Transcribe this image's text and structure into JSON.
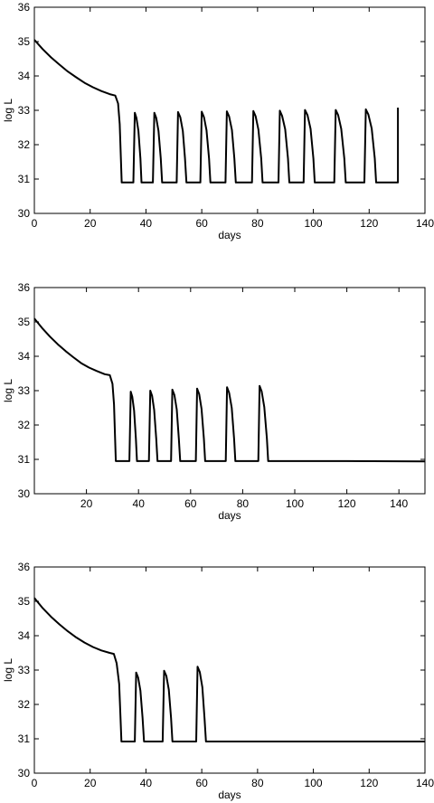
{
  "chart_data": [
    {
      "type": "line",
      "xlabel": "days",
      "ylabel": "log L",
      "xlim": [
        0,
        140
      ],
      "ylim": [
        30,
        36
      ],
      "xticks": [
        "0",
        "20",
        "40",
        "60",
        "80",
        "100",
        "120",
        "140"
      ],
      "yticks": [
        "30",
        "31",
        "32",
        "33",
        "34",
        "35",
        "36"
      ],
      "grid": false,
      "series": [
        {
          "name": "",
          "x": [
            0,
            3,
            6,
            9,
            12,
            15,
            18,
            21,
            24,
            27,
            29,
            30,
            30.6,
            31,
            31.3,
            35.5,
            36,
            36.6,
            37.3,
            38,
            38.4,
            42.5,
            43,
            43.7,
            44.5,
            45.3,
            45.8,
            51,
            51.5,
            52.3,
            53.2,
            54,
            54.5,
            59.5,
            60,
            60.8,
            61.7,
            62.6,
            63.1,
            68.5,
            69,
            69.8,
            70.8,
            71.7,
            72.2,
            78,
            78.5,
            79.3,
            80.3,
            81.3,
            81.8,
            87.5,
            88,
            88.8,
            89.9,
            90.9,
            91.4,
            96.5,
            97,
            97.9,
            99,
            100,
            100.5,
            107.5,
            108,
            108.9,
            110,
            111.1,
            111.6,
            118.3,
            118.8,
            119.7,
            120.9,
            122,
            122.5,
            130.3,
            130.3
          ],
          "values": [
            35.05,
            34.78,
            34.54,
            34.33,
            34.13,
            33.96,
            33.8,
            33.67,
            33.56,
            33.47,
            33.43,
            33.2,
            32.6,
            31.6,
            30.9,
            30.9,
            32.93,
            32.78,
            32.4,
            31.6,
            30.9,
            30.9,
            32.93,
            32.78,
            32.4,
            31.6,
            30.9,
            30.9,
            32.95,
            32.8,
            32.4,
            31.6,
            30.9,
            30.9,
            32.96,
            32.8,
            32.42,
            31.6,
            30.9,
            30.9,
            32.97,
            32.82,
            32.43,
            31.6,
            30.9,
            30.9,
            32.98,
            32.83,
            32.44,
            31.6,
            30.9,
            30.9,
            32.99,
            32.84,
            32.45,
            31.6,
            30.9,
            30.9,
            33.01,
            32.86,
            32.46,
            31.6,
            30.9,
            30.9,
            33.01,
            32.86,
            32.46,
            31.6,
            30.9,
            30.9,
            33.03,
            32.88,
            32.47,
            31.6,
            30.9,
            30.9,
            33.08
          ]
        }
      ]
    },
    {
      "type": "line",
      "xlabel": "days",
      "ylabel": "log L",
      "xlim": [
        0,
        150
      ],
      "ylim": [
        30,
        36
      ],
      "xticks": [
        "20",
        "40",
        "60",
        "80",
        "100",
        "120",
        "140"
      ],
      "yticks": [
        "30",
        "31",
        "32",
        "33",
        "34",
        "35",
        "36"
      ],
      "grid": false,
      "series": [
        {
          "name": "",
          "x": [
            0,
            3,
            6,
            9,
            12,
            15,
            18,
            21,
            24,
            27,
            29,
            30,
            30.6,
            31,
            31.3,
            36.5,
            37,
            37.6,
            38.3,
            39,
            39.4,
            44,
            44.5,
            45.2,
            46,
            46.8,
            47.3,
            52.5,
            53,
            53.8,
            54.7,
            55.5,
            56,
            62,
            62.5,
            63.3,
            64.2,
            65.1,
            65.6,
            73.5,
            74,
            74.8,
            75.8,
            76.7,
            77.2,
            86,
            86.5,
            87.3,
            88.3,
            89.3,
            89.8,
            100,
            120,
            150
          ],
          "values": [
            35.1,
            34.82,
            34.57,
            34.35,
            34.15,
            33.97,
            33.8,
            33.67,
            33.57,
            33.48,
            33.45,
            33.2,
            32.6,
            31.6,
            30.95,
            30.95,
            32.97,
            32.82,
            32.42,
            31.6,
            30.95,
            30.95,
            33.0,
            32.85,
            32.44,
            31.6,
            30.95,
            30.95,
            33.03,
            32.87,
            32.45,
            31.6,
            30.95,
            30.95,
            33.06,
            32.9,
            32.47,
            31.6,
            30.95,
            30.95,
            33.1,
            32.94,
            32.5,
            31.6,
            30.95,
            30.95,
            33.14,
            32.98,
            32.52,
            31.6,
            30.95,
            30.95,
            30.95,
            30.94
          ]
        }
      ]
    },
    {
      "type": "line",
      "xlabel": "days",
      "ylabel": "log L",
      "xlim": [
        0,
        140
      ],
      "ylim": [
        30,
        36
      ],
      "xticks": [
        "0",
        "20",
        "40",
        "60",
        "80",
        "100",
        "120",
        "140"
      ],
      "yticks": [
        "30",
        "31",
        "32",
        "33",
        "34",
        "35",
        "36"
      ],
      "grid": false,
      "series": [
        {
          "name": "",
          "x": [
            0,
            3,
            6,
            9,
            12,
            15,
            18,
            21,
            24,
            27,
            28.5,
            29.5,
            30.4,
            30.9,
            31.2,
            36,
            36.5,
            37.2,
            38,
            38.8,
            39.3,
            46,
            46.5,
            47.3,
            48.2,
            49,
            49.5,
            58,
            58.5,
            59.3,
            60.2,
            61,
            61.5,
            80,
            100,
            120,
            140
          ],
          "values": [
            35.1,
            34.8,
            34.55,
            34.33,
            34.13,
            33.95,
            33.8,
            33.67,
            33.57,
            33.5,
            33.47,
            33.2,
            32.6,
            31.6,
            30.92,
            30.92,
            32.93,
            32.78,
            32.4,
            31.6,
            30.92,
            30.92,
            32.98,
            32.83,
            32.43,
            31.6,
            30.92,
            30.92,
            33.1,
            32.94,
            32.5,
            31.6,
            30.92,
            30.92,
            30.92,
            30.92,
            30.92
          ]
        }
      ]
    }
  ]
}
